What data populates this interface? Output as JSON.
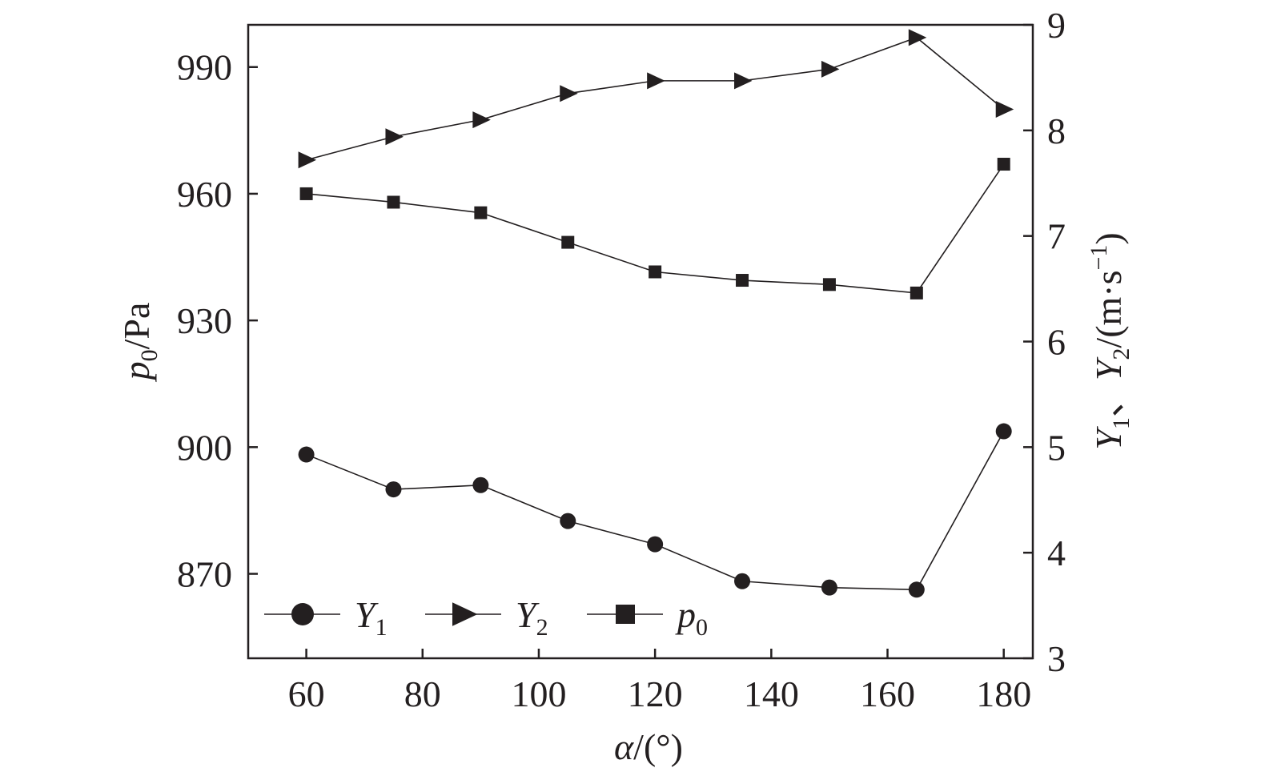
{
  "chart_data": {
    "type": "line",
    "x": [
      60,
      75,
      90,
      105,
      120,
      135,
      150,
      165,
      180
    ],
    "xlim": [
      50,
      185
    ],
    "xticks": [
      60,
      80,
      100,
      120,
      140,
      160,
      180
    ],
    "xlabel": {
      "main": "α/(°)"
    },
    "ylim_left": [
      850,
      1000
    ],
    "yticks_left": [
      870,
      900,
      930,
      960,
      990
    ],
    "ylabel_left": {
      "sym": "p",
      "sub": "0",
      "rest": "/Pa"
    },
    "ylim_right": [
      3,
      9
    ],
    "yticks_right": [
      3,
      4,
      5,
      6,
      7,
      8,
      9
    ],
    "ylabel_right": {
      "y1": "Y",
      "sub1": "1",
      "sep": "、",
      "y2": "Y",
      "sub2": "2",
      "rest": "/(m·s",
      "sup": "−1",
      "close": ")"
    },
    "series": [
      {
        "name": "Y1",
        "label_main": "Y",
        "label_sub": "1",
        "marker": "circle",
        "axis": "right",
        "values": [
          4.93,
          4.6,
          4.64,
          4.3,
          4.08,
          3.73,
          3.67,
          3.65,
          5.15
        ]
      },
      {
        "name": "Y2",
        "label_main": "Y",
        "label_sub": "2",
        "marker": "triangle-right",
        "axis": "right",
        "values": [
          7.72,
          7.94,
          8.1,
          8.35,
          8.47,
          8.47,
          8.58,
          8.88,
          8.2
        ]
      },
      {
        "name": "p0",
        "label_main": "p",
        "label_sub": "0",
        "marker": "square",
        "axis": "left",
        "values": [
          960,
          958,
          955.5,
          948.5,
          941.5,
          939.5,
          938.5,
          936.5,
          967
        ]
      }
    ],
    "legend_position": "bottom-left",
    "grid": false
  }
}
